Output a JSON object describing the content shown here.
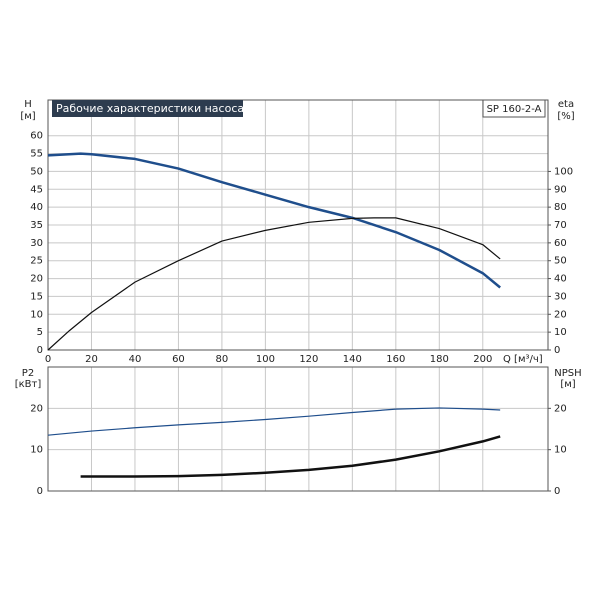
{
  "chart_data": [
    {
      "type": "line",
      "title": "Рабочие характеристики насоса",
      "model": "SP 160-2-A",
      "ylabel": "H",
      "yunit": "[м]",
      "y2label": "eta",
      "y2unit": "[%]",
      "xlabel": "Q [м³/ч]",
      "xlim": [
        0,
        230
      ],
      "xticks": [
        0,
        20,
        40,
        60,
        80,
        100,
        120,
        140,
        160,
        180,
        200
      ],
      "ylim": [
        0,
        70
      ],
      "yticks": [
        0,
        5,
        10,
        15,
        20,
        25,
        30,
        35,
        40,
        45,
        50,
        55,
        60
      ],
      "y2lim": [
        0,
        140
      ],
      "y2ticks": [
        0,
        10,
        20,
        30,
        40,
        50,
        60,
        70,
        80,
        90,
        100
      ],
      "grid": true,
      "series": [
        {
          "color": "#1f4e8c",
          "width": 2.5,
          "axis": "y",
          "x": [
            0,
            15,
            20,
            40,
            60,
            80,
            100,
            120,
            140,
            160,
            180,
            200,
            208
          ],
          "values": [
            54.5,
            55,
            54.8,
            53.5,
            50.8,
            47,
            43.5,
            40,
            37,
            33,
            28,
            21.5,
            17.5
          ]
        },
        {
          "color": "#111111",
          "width": 1.2,
          "axis": "y2",
          "x": [
            0,
            10,
            20,
            40,
            60,
            80,
            100,
            120,
            140,
            150,
            160,
            180,
            200,
            208
          ],
          "values": [
            0,
            11,
            21,
            38,
            50,
            61,
            67,
            71.5,
            73.7,
            74,
            74,
            68,
            59,
            51
          ]
        }
      ]
    },
    {
      "type": "line",
      "ylabel": "P2",
      "yunit": "[кВт]",
      "y2label": "NPSH",
      "y2unit": "[м]",
      "xlim": [
        0,
        230
      ],
      "xticks": [
        0,
        20,
        40,
        60,
        80,
        100,
        120,
        140,
        160,
        180,
        200
      ],
      "ylim": [
        0,
        30
      ],
      "yticks": [
        0,
        10,
        20
      ],
      "y2lim": [
        0,
        30
      ],
      "y2ticks": [
        0,
        10,
        20
      ],
      "grid": true,
      "series": [
        {
          "color": "#1f4e8c",
          "width": 1.2,
          "axis": "y",
          "x": [
            0,
            20,
            40,
            60,
            80,
            100,
            120,
            140,
            160,
            180,
            200,
            208
          ],
          "values": [
            13.5,
            14.5,
            15.3,
            16,
            16.6,
            17.3,
            18.1,
            19,
            19.8,
            20.1,
            19.8,
            19.6
          ]
        },
        {
          "color": "#111111",
          "width": 2.5,
          "axis": "y2",
          "x": [
            15,
            40,
            60,
            80,
            100,
            120,
            140,
            160,
            180,
            200,
            208
          ],
          "values": [
            3.5,
            3.5,
            3.6,
            3.9,
            4.4,
            5.1,
            6.1,
            7.6,
            9.6,
            12,
            13.2
          ]
        }
      ]
    }
  ]
}
